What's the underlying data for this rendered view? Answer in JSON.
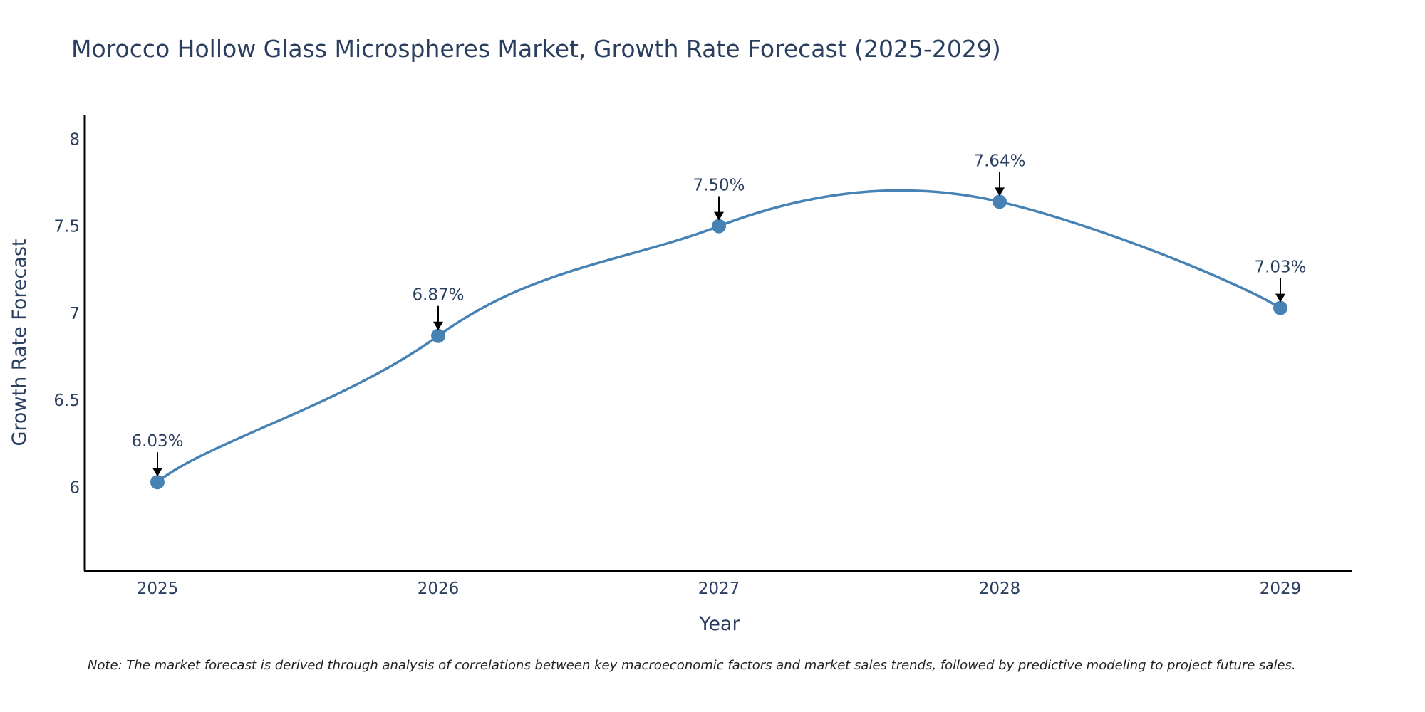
{
  "chart_data": {
    "type": "line",
    "title": "Morocco Hollow Glass Microspheres Market, Growth Rate Forecast (2025-2029)",
    "xlabel": "Year",
    "ylabel": "Growth Rate Forecast",
    "categories": [
      "2025",
      "2026",
      "2027",
      "2028",
      "2029"
    ],
    "series": [
      {
        "name": "Growth Rate Forecast",
        "values": [
          6.03,
          6.87,
          7.5,
          7.64,
          7.03
        ]
      }
    ],
    "data_labels": [
      "6.03%",
      "6.87%",
      "7.50%",
      "7.64%",
      "7.03%"
    ],
    "yticks": [
      "6",
      "6.5",
      "7",
      "7.5",
      "8"
    ],
    "ylim": [
      5.52,
      8.14
    ],
    "grid": false,
    "legend": "none",
    "note": "Note: The market forecast is derived through analysis of correlations between key macroeconomic factors and market sales trends, followed by predictive modeling to project future sales.",
    "colors": {
      "line": "#4682b4",
      "marker": "#4682b4",
      "text": "#2a3f5f",
      "axis": "#000000"
    }
  }
}
